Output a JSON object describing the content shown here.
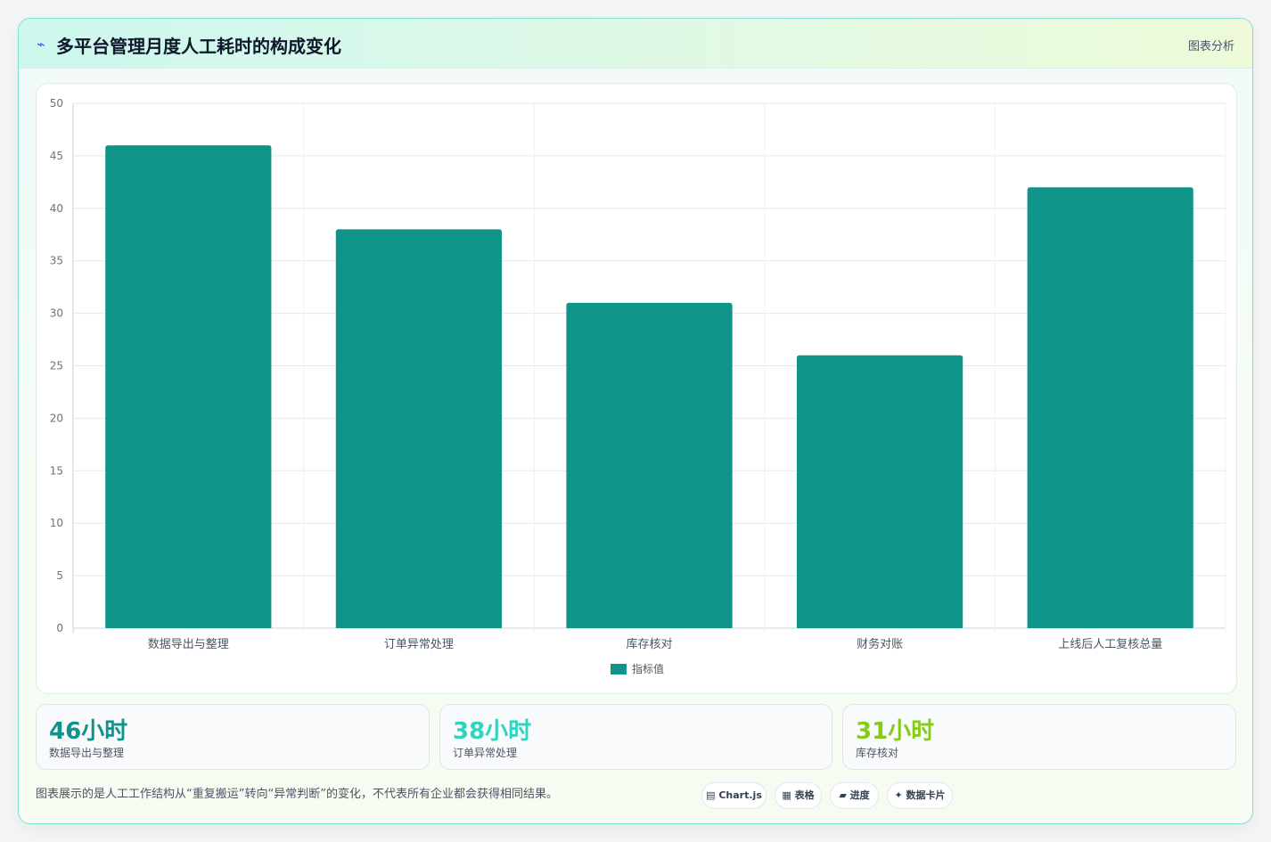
{
  "header": {
    "icon": "lightning-icon",
    "title": "多平台管理月度人工耗时的构成变化",
    "right_label": "图表分析"
  },
  "chart_data": {
    "type": "bar",
    "categories": [
      "数据导出与整理",
      "订单异常处理",
      "库存核对",
      "财务对账",
      "上线后人工复核总量"
    ],
    "series": [
      {
        "name": "指标值",
        "values": [
          46,
          38,
          31,
          26,
          42
        ],
        "color": "#0e9488"
      }
    ],
    "ylim": [
      0,
      50
    ],
    "yticks": [
      0,
      5,
      10,
      15,
      20,
      25,
      30,
      35,
      40,
      45,
      50
    ],
    "grid": true,
    "legend": "bottom"
  },
  "stats": [
    {
      "value": "46小时",
      "label": "数据导出与整理",
      "color": "#0e9488"
    },
    {
      "value": "38小时",
      "label": "订单异常处理",
      "color": "#2dd4bf"
    },
    {
      "value": "31小时",
      "label": "库存核对",
      "color": "#84cc16"
    }
  ],
  "footnote": "图表展示的是人工工作结构从“重复搬运”转向“异常判断”的变化，不代表所有企业都会获得相同结果。",
  "tags": [
    {
      "icon": "▤",
      "label": "Chart.js"
    },
    {
      "icon": "▦",
      "label": "表格"
    },
    {
      "icon": "▰",
      "label": "进度"
    },
    {
      "icon": "✦",
      "label": "数据卡片"
    }
  ]
}
